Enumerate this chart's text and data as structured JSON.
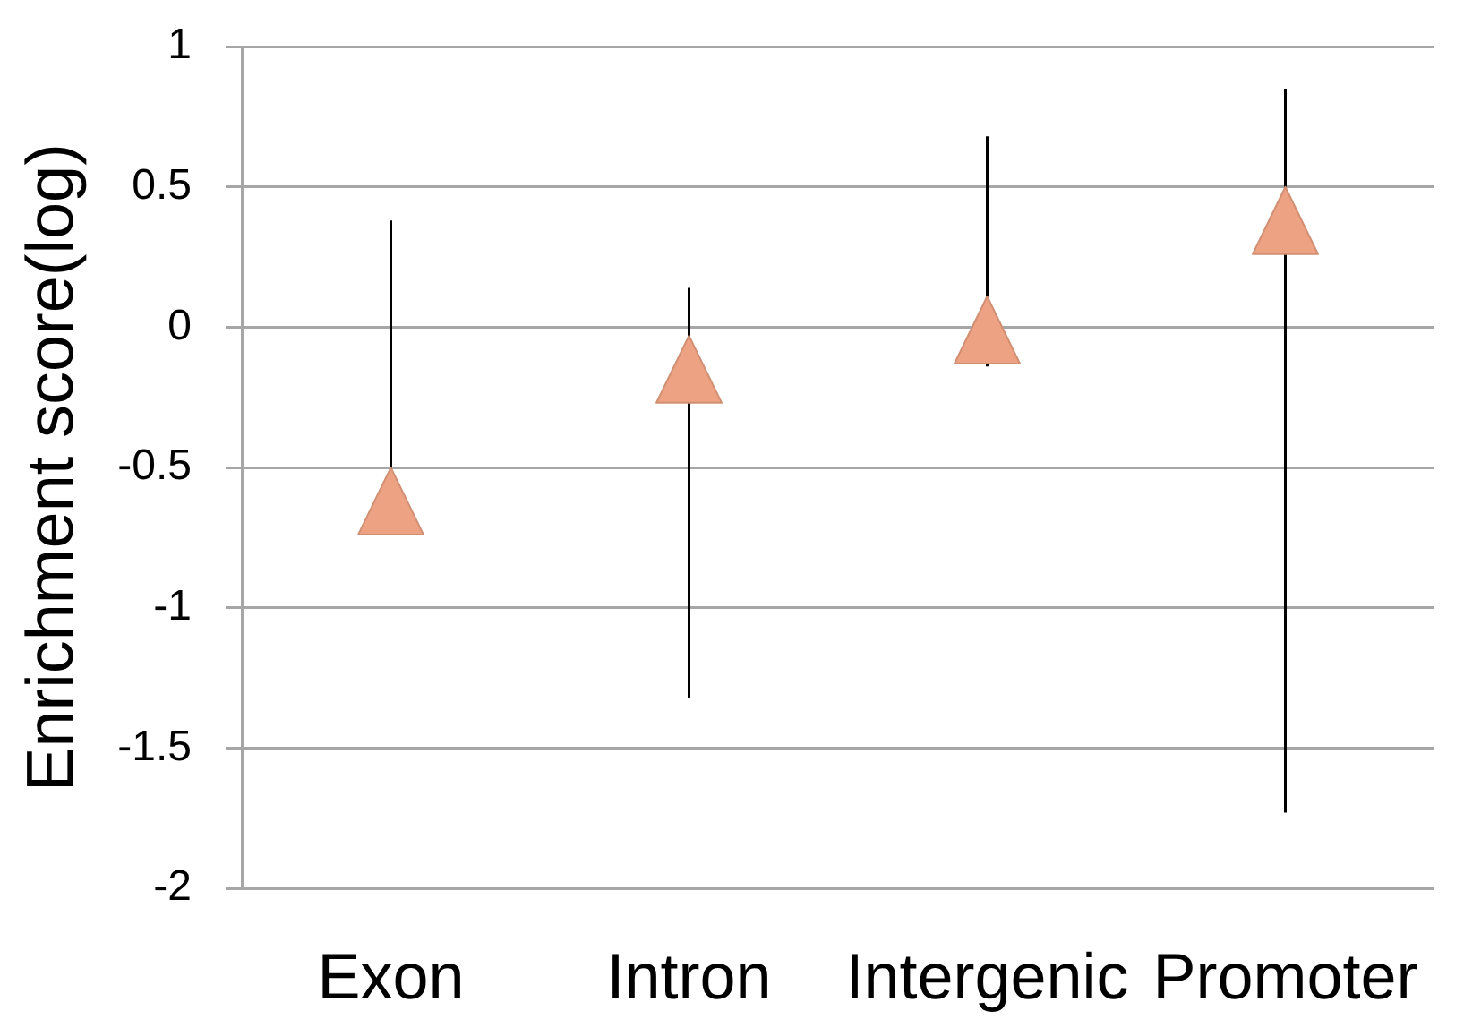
{
  "chart_data": {
    "type": "scatter",
    "ylabel": "Enrichment score(log)",
    "categories": [
      "Exon",
      "Intron",
      "Intergenic",
      "Promoter"
    ],
    "series": [
      {
        "color": "#eda283",
        "values": [
          -0.62,
          -0.15,
          -0.01,
          0.38
        ],
        "errors": [
          [
            -0.62,
            0.38
          ],
          [
            -1.32,
            0.14
          ],
          [
            -0.14,
            0.68
          ],
          [
            -1.73,
            0.85
          ]
        ]
      }
    ],
    "ylim": [
      -2,
      1
    ],
    "yticks": [
      -2,
      -1.5,
      -1,
      -0.5,
      0,
      0.5,
      1
    ],
    "grid": "y",
    "marker": "triangle",
    "legend": false
  }
}
